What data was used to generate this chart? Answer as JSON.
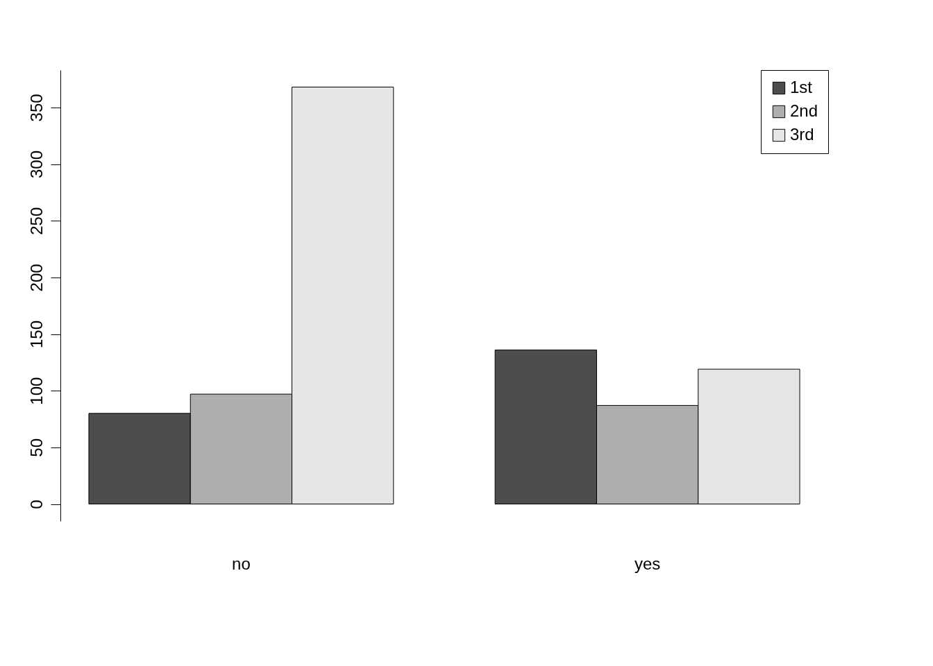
{
  "chart_data": {
    "type": "bar",
    "categories": [
      "no",
      "yes"
    ],
    "series": [
      {
        "name": "1st",
        "color": "#4d4d4d",
        "values": [
          80,
          136
        ]
      },
      {
        "name": "2nd",
        "color": "#aeaeae",
        "values": [
          97,
          87
        ]
      },
      {
        "name": "3rd",
        "color": "#e6e6e6",
        "values": [
          368,
          119
        ]
      }
    ],
    "ylim": [
      -15,
      383
    ],
    "yticks": [
      0,
      50,
      100,
      150,
      200,
      250,
      300,
      350
    ],
    "grid": false,
    "legend": "top right"
  }
}
